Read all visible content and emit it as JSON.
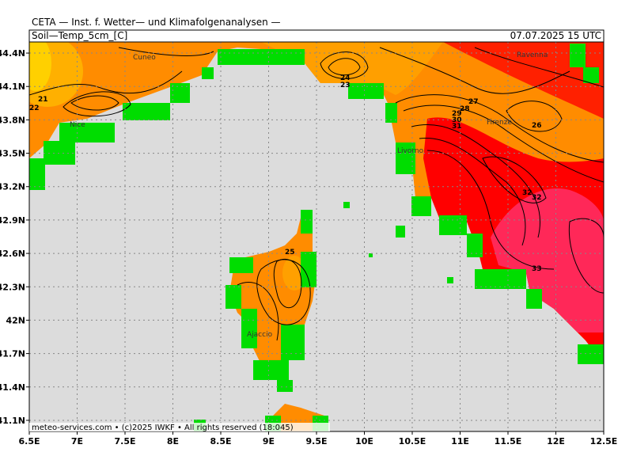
{
  "header": {
    "title": "CETA — Inst. f. Wetter— und Klimafolgenanalysen —",
    "parameter": "Soil—Temp_5cm_[C]",
    "valid_time": "07.07.2025 15 UTC"
  },
  "footer": "meteo-services.com • (c)2025 IWKF • All rights reserved (18:045)",
  "axes": {
    "lonlim": [
      6.5,
      12.5
    ],
    "latlim": [
      41.0,
      44.5
    ],
    "lon_ticks": [
      {
        "value": 6.5,
        "label": "6.5E"
      },
      {
        "value": 7,
        "label": "7E"
      },
      {
        "value": 7.5,
        "label": "7.5E"
      },
      {
        "value": 8,
        "label": "8E"
      },
      {
        "value": 8.5,
        "label": "8.5E"
      },
      {
        "value": 9,
        "label": "9E"
      },
      {
        "value": 9.5,
        "label": "9.5E"
      },
      {
        "value": 10,
        "label": "10E"
      },
      {
        "value": 10.5,
        "label": "10.5E"
      },
      {
        "value": 11,
        "label": "11E"
      },
      {
        "value": 11.5,
        "label": "11.5E"
      },
      {
        "value": 12,
        "label": "12E"
      },
      {
        "value": 12.5,
        "label": "12.5E"
      }
    ],
    "lat_ticks": [
      {
        "value": 44.4,
        "label": "44.4N"
      },
      {
        "value": 44.1,
        "label": "44.1N"
      },
      {
        "value": 43.8,
        "label": "43.8N"
      },
      {
        "value": 43.5,
        "label": "43.5N"
      },
      {
        "value": 43.2,
        "label": "43.2N"
      },
      {
        "value": 42.9,
        "label": "42.9N"
      },
      {
        "value": 42.6,
        "label": "42.6N"
      },
      {
        "value": 42.3,
        "label": "42.3N"
      },
      {
        "value": 42,
        "label": "42N"
      },
      {
        "value": 41.7,
        "label": "41.7N"
      },
      {
        "value": 41.4,
        "label": "41.4N"
      },
      {
        "value": 41.1,
        "label": "41.1N"
      }
    ]
  },
  "cities": [
    "Cuneo",
    "Nice",
    "Livorno",
    "Firenze",
    "Ravenna",
    "Ajaccio"
  ],
  "contour_labels": [
    "21",
    "22",
    "24",
    "23",
    "27",
    "28",
    "29",
    "30",
    "31",
    "26",
    "32",
    "32",
    "33",
    "25"
  ]
}
